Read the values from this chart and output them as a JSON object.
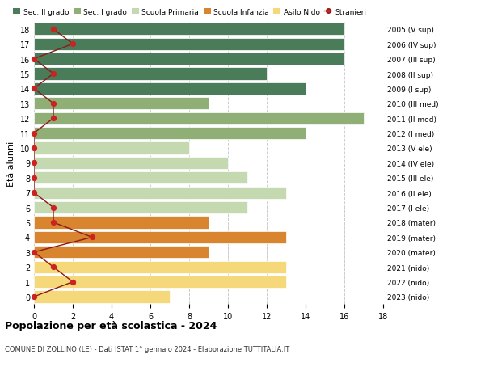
{
  "ages": [
    18,
    17,
    16,
    15,
    14,
    13,
    12,
    11,
    10,
    9,
    8,
    7,
    6,
    5,
    4,
    3,
    2,
    1,
    0
  ],
  "years_labels": [
    "2005 (V sup)",
    "2006 (IV sup)",
    "2007 (III sup)",
    "2008 (II sup)",
    "2009 (I sup)",
    "2010 (III med)",
    "2011 (II med)",
    "2012 (I med)",
    "2013 (V ele)",
    "2014 (IV ele)",
    "2015 (III ele)",
    "2016 (II ele)",
    "2017 (I ele)",
    "2018 (mater)",
    "2019 (mater)",
    "2020 (mater)",
    "2021 (nido)",
    "2022 (nido)",
    "2023 (nido)"
  ],
  "bar_values": [
    16,
    16,
    16,
    12,
    14,
    9,
    17,
    14,
    8,
    10,
    11,
    13,
    11,
    9,
    13,
    9,
    13,
    13,
    7
  ],
  "bar_colors": [
    "#4a7c59",
    "#4a7c59",
    "#4a7c59",
    "#4a7c59",
    "#4a7c59",
    "#8faf77",
    "#8faf77",
    "#8faf77",
    "#c5d9b0",
    "#c5d9b0",
    "#c5d9b0",
    "#c5d9b0",
    "#c5d9b0",
    "#d9842e",
    "#d9842e",
    "#d9842e",
    "#f5d87a",
    "#f5d87a",
    "#f5d87a"
  ],
  "stranieri_values": [
    1,
    2,
    0,
    1,
    0,
    1,
    1,
    0,
    0,
    0,
    0,
    0,
    1,
    1,
    3,
    0,
    1,
    2,
    0
  ],
  "legend_labels": [
    "Sec. II grado",
    "Sec. I grado",
    "Scuola Primaria",
    "Scuola Infanzia",
    "Asilo Nido",
    "Stranieri"
  ],
  "legend_colors": [
    "#4a7c59",
    "#8faf77",
    "#c5d9b0",
    "#d9842e",
    "#f5d87a",
    "#cc2222"
  ],
  "title": "Popolazione per età scolastica - 2024",
  "subtitle": "COMUNE DI ZOLLINO (LE) - Dati ISTAT 1° gennaio 2024 - Elaborazione TUTTITALIA.IT",
  "ylabel": "Età alunni",
  "xlim": [
    0,
    18
  ],
  "background_color": "#ffffff",
  "grid_color": "#cccccc",
  "stranieri_line_color": "#8b1a1a",
  "stranieri_dot_color": "#cc2222"
}
